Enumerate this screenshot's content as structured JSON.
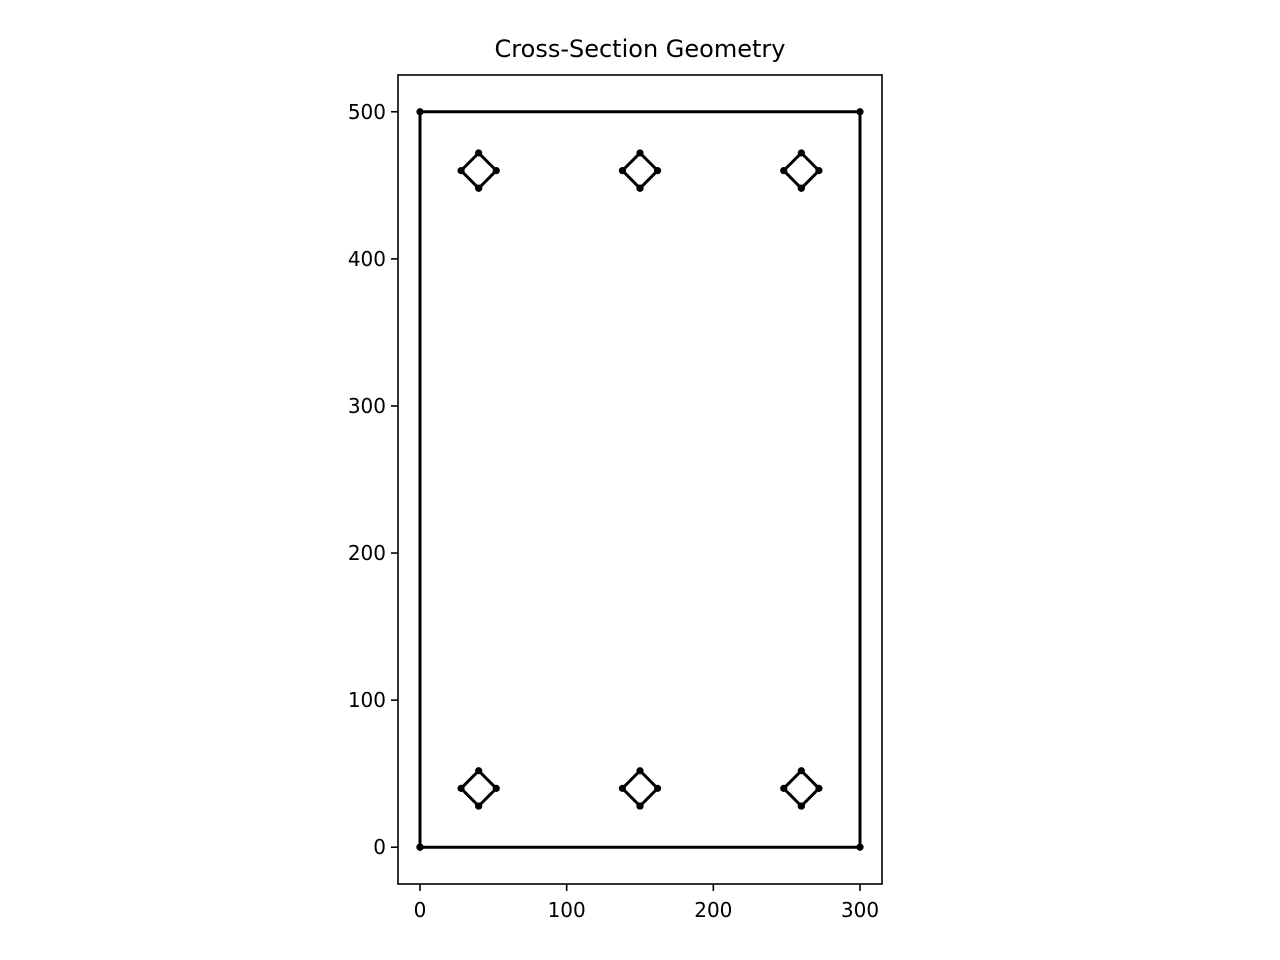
{
  "chart_data": {
    "type": "line",
    "title": "Cross-Section Geometry",
    "xlabel": "",
    "ylabel": "",
    "xlim": [
      -15,
      315
    ],
    "ylim": [
      -25,
      525
    ],
    "aspect": "equal",
    "grid": false,
    "legend": "none",
    "x_ticks": [
      0,
      100,
      200,
      300
    ],
    "y_ticks": [
      0,
      100,
      200,
      300,
      400,
      500
    ],
    "x_tick_labels": [
      "0",
      "100",
      "200",
      "300"
    ],
    "y_tick_labels": [
      "0",
      "100",
      "200",
      "300",
      "400",
      "500"
    ],
    "series": [
      {
        "role": "outline",
        "points": [
          [
            0,
            0
          ],
          [
            300,
            0
          ],
          [
            300,
            500
          ],
          [
            0,
            500
          ],
          [
            0,
            0
          ]
        ]
      },
      {
        "role": "bar",
        "points": [
          [
            40,
            28
          ],
          [
            52,
            40
          ],
          [
            40,
            52
          ],
          [
            28,
            40
          ],
          [
            40,
            28
          ]
        ]
      },
      {
        "role": "bar",
        "points": [
          [
            150,
            28
          ],
          [
            162,
            40
          ],
          [
            150,
            52
          ],
          [
            138,
            40
          ],
          [
            150,
            28
          ]
        ]
      },
      {
        "role": "bar",
        "points": [
          [
            260,
            28
          ],
          [
            272,
            40
          ],
          [
            260,
            52
          ],
          [
            248,
            40
          ],
          [
            260,
            28
          ]
        ]
      },
      {
        "role": "bar",
        "points": [
          [
            40,
            448
          ],
          [
            52,
            460
          ],
          [
            40,
            472
          ],
          [
            28,
            460
          ],
          [
            40,
            448
          ]
        ]
      },
      {
        "role": "bar",
        "points": [
          [
            150,
            448
          ],
          [
            162,
            460
          ],
          [
            150,
            472
          ],
          [
            138,
            460
          ],
          [
            150,
            448
          ]
        ]
      },
      {
        "role": "bar",
        "points": [
          [
            260,
            448
          ],
          [
            272,
            460
          ],
          [
            260,
            472
          ],
          [
            248,
            460
          ],
          [
            260,
            448
          ]
        ]
      }
    ],
    "line_color": "#000000",
    "marker": "dot"
  }
}
